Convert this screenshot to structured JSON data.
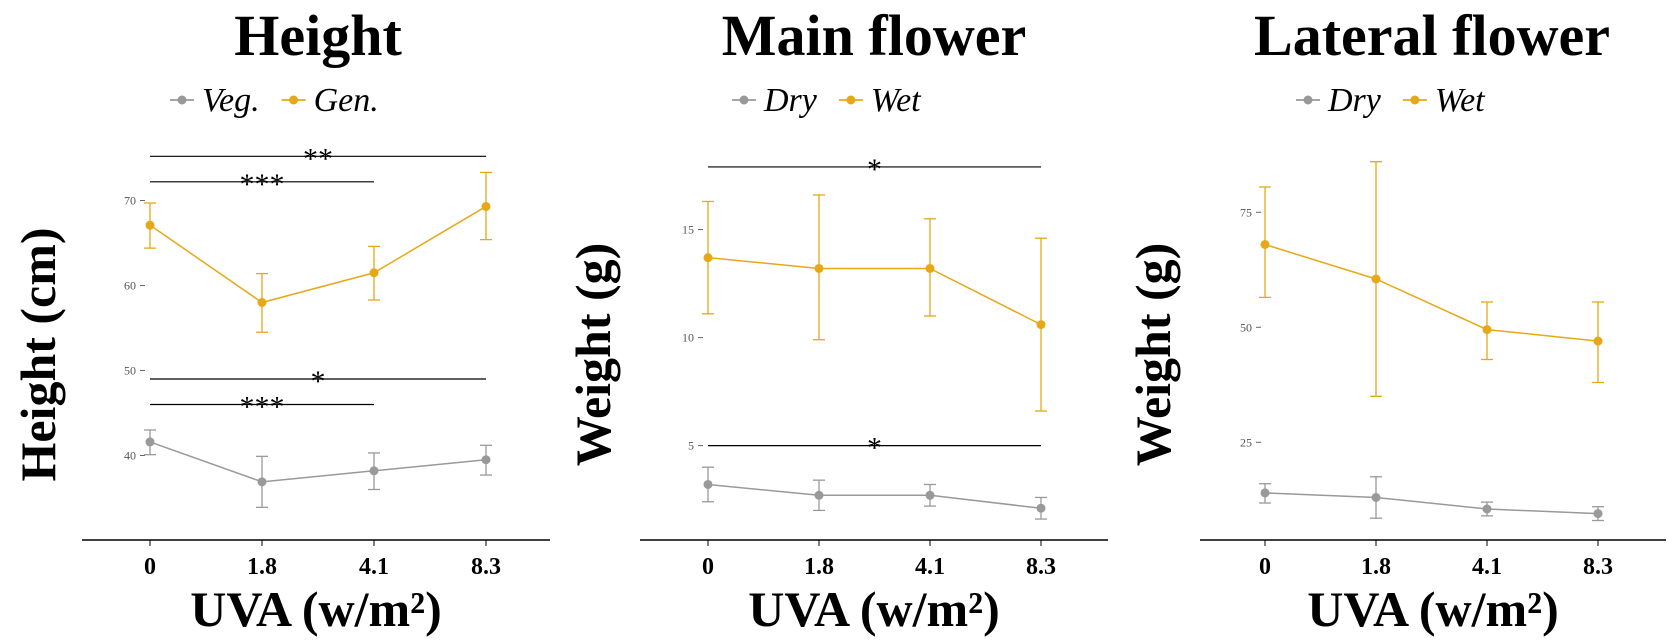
{
  "chart_data": [
    {
      "type": "line",
      "title": "Height",
      "xlabel": "UVA (w/m²)",
      "ylabel": "Height (cm)",
      "categories": [
        "0",
        "1.8",
        "4.1",
        "8.3"
      ],
      "ylim": [
        31,
        77
      ],
      "yticks": [
        40,
        50,
        60,
        70
      ],
      "series": [
        {
          "name": "Veg.",
          "color": "#999999",
          "values": [
            41.6,
            36.9,
            38.2,
            39.5
          ],
          "err_low": [
            40.1,
            33.9,
            36.0,
            37.7
          ],
          "err_high": [
            43.0,
            39.9,
            40.3,
            41.2
          ]
        },
        {
          "name": "Gen.",
          "color": "#E6A817",
          "values": [
            67.1,
            58.0,
            61.5,
            69.3
          ],
          "err_low": [
            64.4,
            54.5,
            58.3,
            65.4
          ],
          "err_high": [
            69.7,
            61.4,
            64.6,
            73.3
          ]
        }
      ],
      "significance": [
        {
          "label": "**",
          "from": 0,
          "to": 3,
          "y": 75.2
        },
        {
          "label": "***",
          "from": 0,
          "to": 2,
          "y": 72.2
        },
        {
          "label": "*",
          "from": 0,
          "to": 3,
          "y": 49.0
        },
        {
          "label": "***",
          "from": 0,
          "to": 2,
          "y": 46.0
        }
      ]
    },
    {
      "type": "line",
      "title": "Main flower",
      "xlabel": "UVA (w/m²)",
      "ylabel": "Weight (g)",
      "categories": [
        "0",
        "1.8",
        "4.1",
        "8.3"
      ],
      "ylim": [
        1.0,
        19.1
      ],
      "yticks": [
        5,
        10,
        15
      ],
      "series": [
        {
          "name": "Dry",
          "color": "#999999",
          "values": [
            3.2,
            2.7,
            2.7,
            2.1
          ],
          "err_low": [
            2.4,
            2.0,
            2.2,
            1.6
          ],
          "err_high": [
            4.0,
            3.4,
            3.2,
            2.6
          ]
        },
        {
          "name": "Wet",
          "color": "#E6A817",
          "values": [
            13.7,
            13.2,
            13.2,
            10.6
          ],
          "err_low": [
            11.1,
            9.9,
            11.0,
            6.6
          ],
          "err_high": [
            16.3,
            16.6,
            15.5,
            14.6
          ]
        }
      ],
      "significance": [
        {
          "label": "*",
          "from": 0,
          "to": 3,
          "y": 17.9
        },
        {
          "label": "*",
          "from": 0,
          "to": 3,
          "y": 5.0
        }
      ]
    },
    {
      "type": "line",
      "title": "Lateral flower",
      "xlabel": "UVA (w/m²)",
      "ylabel": "Weight (g)",
      "categories": [
        "0",
        "1.8",
        "4.1",
        "8.3"
      ],
      "ylim": [
        5.5,
        90.5
      ],
      "yticks": [
        25,
        50,
        75
      ],
      "series": [
        {
          "name": "Dry",
          "color": "#999999",
          "values": [
            14.0,
            13.0,
            10.5,
            9.5
          ],
          "err_low": [
            11.8,
            8.5,
            9.0,
            8.0
          ],
          "err_high": [
            16.0,
            17.5,
            12.0,
            11.0
          ]
        },
        {
          "name": "Wet",
          "color": "#E6A817",
          "values": [
            68.0,
            60.5,
            49.5,
            47.0
          ],
          "err_low": [
            56.5,
            35.0,
            43.0,
            38.0
          ],
          "err_high": [
            80.5,
            86.0,
            55.5,
            55.5
          ]
        }
      ],
      "significance": []
    }
  ]
}
